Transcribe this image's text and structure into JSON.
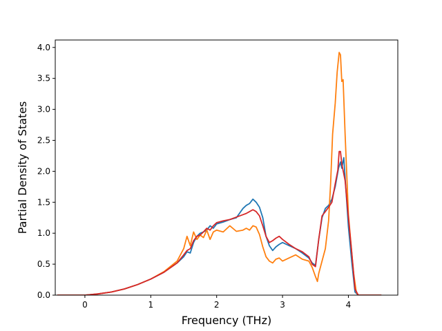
{
  "chart_data": {
    "type": "line",
    "title": "",
    "xlabel": "Frequency (THz)",
    "ylabel": "Partial Density of States",
    "xlim": [
      -0.45,
      4.75
    ],
    "ylim": [
      0.0,
      4.12
    ],
    "xticks": [
      0,
      1,
      2,
      3,
      4
    ],
    "xtick_labels": [
      "0",
      "1",
      "2",
      "3",
      "4"
    ],
    "yticks": [
      0.0,
      0.5,
      1.0,
      1.5,
      2.0,
      2.5,
      3.0,
      3.5,
      4.0
    ],
    "ytick_labels": [
      "0.0",
      "0.5",
      "1.0",
      "1.5",
      "2.0",
      "2.5",
      "3.0",
      "3.5",
      "4.0"
    ],
    "grid": false,
    "legend": "none",
    "series": [
      {
        "color": "#1f77b4",
        "x": [
          -0.42,
          -0.2,
          0.0,
          0.2,
          0.4,
          0.6,
          0.8,
          1.0,
          1.2,
          1.4,
          1.5,
          1.55,
          1.6,
          1.65,
          1.7,
          1.75,
          1.8,
          1.85,
          1.9,
          1.95,
          2.0,
          2.1,
          2.2,
          2.3,
          2.4,
          2.45,
          2.5,
          2.55,
          2.6,
          2.65,
          2.7,
          2.75,
          2.8,
          2.85,
          2.9,
          2.95,
          3.0,
          3.1,
          3.2,
          3.3,
          3.4,
          3.45,
          3.5,
          3.55,
          3.6,
          3.65,
          3.7,
          3.75,
          3.8,
          3.85,
          3.88,
          3.9,
          3.93,
          3.95,
          4.0,
          4.05,
          4.1,
          4.15,
          4.2,
          4.5
        ],
        "y": [
          0.0,
          0.0,
          0.0,
          0.02,
          0.05,
          0.1,
          0.17,
          0.26,
          0.37,
          0.52,
          0.62,
          0.7,
          0.68,
          0.85,
          0.95,
          1.0,
          1.02,
          1.05,
          1.12,
          1.08,
          1.15,
          1.18,
          1.22,
          1.25,
          1.4,
          1.45,
          1.48,
          1.55,
          1.5,
          1.42,
          1.25,
          0.95,
          0.8,
          0.72,
          0.78,
          0.82,
          0.85,
          0.8,
          0.75,
          0.68,
          0.6,
          0.52,
          0.48,
          0.9,
          1.25,
          1.4,
          1.45,
          1.55,
          1.75,
          2.05,
          2.15,
          2.05,
          2.22,
          1.9,
          1.1,
          0.55,
          0.05,
          0.0,
          0.0,
          0.0
        ]
      },
      {
        "color": "#ff7f0e",
        "x": [
          -0.42,
          -0.2,
          0.0,
          0.2,
          0.4,
          0.6,
          0.8,
          1.0,
          1.2,
          1.4,
          1.5,
          1.55,
          1.6,
          1.65,
          1.7,
          1.75,
          1.8,
          1.85,
          1.9,
          1.95,
          2.0,
          2.1,
          2.2,
          2.3,
          2.4,
          2.45,
          2.5,
          2.55,
          2.6,
          2.65,
          2.7,
          2.75,
          2.8,
          2.85,
          2.9,
          2.95,
          3.0,
          3.1,
          3.2,
          3.3,
          3.4,
          3.45,
          3.5,
          3.53,
          3.55,
          3.6,
          3.65,
          3.7,
          3.73,
          3.76,
          3.8,
          3.83,
          3.86,
          3.88,
          3.9,
          3.92,
          3.95,
          4.0,
          4.05,
          4.08,
          4.12,
          4.15,
          4.2,
          4.5
        ],
        "y": [
          0.0,
          0.0,
          0.0,
          0.02,
          0.05,
          0.1,
          0.17,
          0.26,
          0.38,
          0.55,
          0.75,
          0.95,
          0.8,
          1.02,
          0.9,
          0.97,
          0.93,
          1.05,
          0.9,
          1.02,
          1.05,
          1.02,
          1.12,
          1.03,
          1.05,
          1.08,
          1.05,
          1.12,
          1.1,
          0.98,
          0.78,
          0.62,
          0.55,
          0.52,
          0.58,
          0.6,
          0.55,
          0.6,
          0.65,
          0.58,
          0.55,
          0.45,
          0.3,
          0.22,
          0.35,
          0.55,
          0.75,
          1.2,
          1.8,
          2.6,
          3.1,
          3.6,
          3.92,
          3.88,
          3.45,
          3.48,
          2.6,
          1.3,
          0.7,
          0.35,
          0.05,
          0.0,
          0.0,
          0.0
        ]
      },
      {
        "color": "#d62728",
        "x": [
          -0.42,
          -0.2,
          0.0,
          0.2,
          0.4,
          0.6,
          0.8,
          1.0,
          1.2,
          1.4,
          1.5,
          1.55,
          1.6,
          1.65,
          1.7,
          1.75,
          1.8,
          1.85,
          1.9,
          1.95,
          2.0,
          2.1,
          2.2,
          2.3,
          2.4,
          2.45,
          2.5,
          2.55,
          2.6,
          2.65,
          2.7,
          2.75,
          2.8,
          2.85,
          2.9,
          2.95,
          3.0,
          3.1,
          3.2,
          3.3,
          3.4,
          3.45,
          3.5,
          3.55,
          3.6,
          3.65,
          3.7,
          3.75,
          3.8,
          3.84,
          3.86,
          3.88,
          3.9,
          3.95,
          4.0,
          4.05,
          4.1,
          4.15,
          4.2,
          4.5
        ],
        "y": [
          0.0,
          0.0,
          0.0,
          0.02,
          0.05,
          0.1,
          0.17,
          0.26,
          0.37,
          0.52,
          0.65,
          0.72,
          0.75,
          0.88,
          0.95,
          0.97,
          1.02,
          1.08,
          1.05,
          1.12,
          1.17,
          1.2,
          1.22,
          1.26,
          1.3,
          1.32,
          1.35,
          1.38,
          1.35,
          1.28,
          1.12,
          0.95,
          0.85,
          0.88,
          0.92,
          0.95,
          0.9,
          0.82,
          0.75,
          0.7,
          0.62,
          0.5,
          0.46,
          0.9,
          1.28,
          1.35,
          1.42,
          1.5,
          1.8,
          2.02,
          2.32,
          2.32,
          2.12,
          1.85,
          1.25,
          0.7,
          0.1,
          0.0,
          0.0,
          0.0
        ]
      }
    ]
  }
}
